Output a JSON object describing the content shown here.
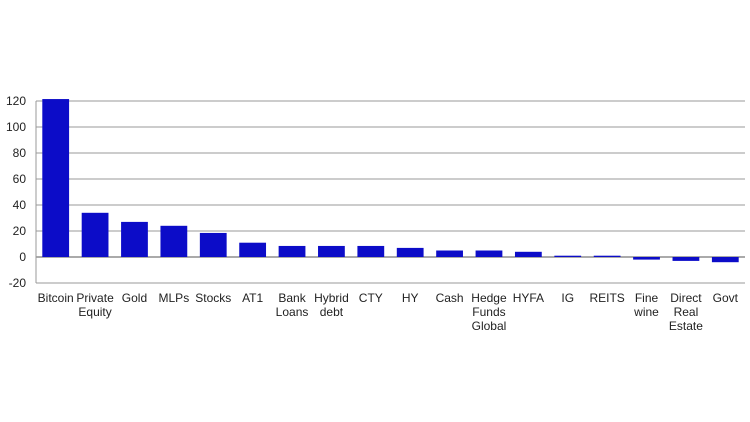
{
  "chart_data": {
    "type": "bar",
    "categories": [
      "Bitcoin",
      "Private Equity",
      "Gold",
      "MLPs",
      "Stocks",
      "AT1",
      "Bank Loans",
      "Hybrid debt",
      "CTY",
      "HY",
      "Cash",
      "Hedge Funds Global",
      "HYFA",
      "IG",
      "REITS",
      "Fine wine",
      "Direct Real Estate",
      "Govt"
    ],
    "values": [
      121.5,
      34,
      27,
      24,
      18.5,
      11,
      8.5,
      8.5,
      8.5,
      7,
      5,
      5,
      4,
      1,
      1,
      -2,
      -3,
      -4
    ],
    "color": "#0c0cc8",
    "ylim": [
      -20,
      120
    ],
    "yticks": [
      -20,
      0,
      20,
      40,
      60,
      80,
      100,
      120
    ],
    "grid": true
  }
}
